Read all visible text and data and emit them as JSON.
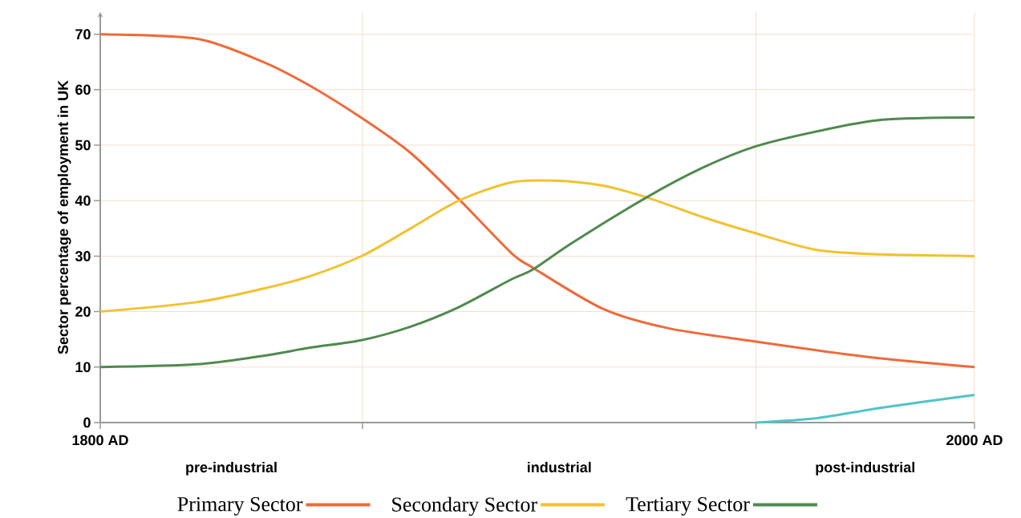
{
  "chart_data": {
    "type": "line",
    "ylabel": "Sector percentage of employment in UK",
    "xlim": [
      1800,
      2000
    ],
    "ylim": [
      0,
      74
    ],
    "xticks": [
      {
        "value": 1800,
        "label": "1800 AD"
      },
      {
        "value": 1860,
        "label": null
      },
      {
        "value": 1950,
        "label": null
      },
      {
        "value": 2000,
        "label": "2000 AD"
      }
    ],
    "yticks": [
      0,
      10,
      20,
      30,
      40,
      50,
      60,
      70
    ],
    "grid": true,
    "legend": "bottom",
    "marker": "none",
    "annotations": [
      "pre-industrial",
      "industrial",
      "post-industrial"
    ],
    "series": [
      {
        "name": "Primary Sector",
        "color": "#ee6a3a",
        "x": [
          1800,
          1822,
          1837,
          1848,
          1860,
          1871,
          1882,
          1894,
          1899,
          1915,
          1930,
          1950,
          1975,
          2000
        ],
        "values": [
          70,
          69.2,
          65.1,
          60.7,
          54.8,
          48.6,
          40.3,
          30.6,
          27.9,
          20.5,
          17,
          14.6,
          11.9,
          10
        ]
      },
      {
        "name": "Secondary Sector",
        "color": "#f2c12e",
        "x": [
          1800,
          1822,
          1837,
          1848,
          1860,
          1871,
          1882,
          1894,
          1904,
          1915,
          1925,
          1938,
          1950,
          1964,
          1979,
          2000
        ],
        "values": [
          20,
          21.7,
          24.1,
          26.4,
          30.1,
          35,
          40,
          43.3,
          43.6,
          42.7,
          40.6,
          37,
          34.1,
          31.1,
          30.3,
          30
        ]
      },
      {
        "name": "Tertiary Sector",
        "color": "#4f8a4f",
        "x": [
          1800,
          1822,
          1837,
          1848,
          1860,
          1871,
          1882,
          1894,
          1899,
          1908,
          1925,
          1938,
          1950,
          1964,
          1979,
          2000
        ],
        "values": [
          10,
          10.5,
          12,
          13.5,
          14.9,
          17.3,
          20.8,
          25.8,
          27.6,
          32.4,
          40.6,
          46,
          49.8,
          52.5,
          54.6,
          55
        ]
      },
      {
        "color": "#4fc4c4",
        "x": [
          1950,
          1964,
          1979,
          2000
        ],
        "values": [
          0,
          0.8,
          2.7,
          5
        ]
      }
    ]
  }
}
